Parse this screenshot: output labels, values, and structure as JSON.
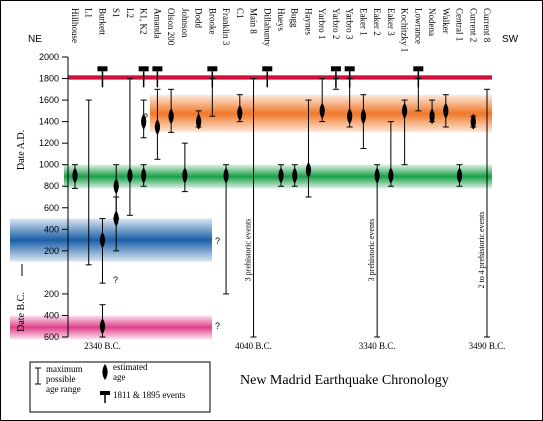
{
  "chart_data": {
    "type": "chronology",
    "title": "New Madrid Earthquake Chronology",
    "ylabel_top": "Date A.D.",
    "ylabel_bottom": "Date B.C.",
    "left_label": "NE",
    "right_label": "SW",
    "ylim": [
      -600,
      2000
    ],
    "yticks": [
      2000,
      1800,
      1600,
      1400,
      1200,
      1000,
      800,
      600,
      400,
      200,
      {
        "value": -200,
        "label": "200"
      },
      {
        "value": -400,
        "label": "400"
      },
      {
        "value": -600,
        "label": "600"
      }
    ],
    "bands": [
      {
        "from": 1790,
        "to": 1830,
        "color": "#d0103a"
      },
      {
        "from": 1300,
        "to": 1650,
        "color": "#f07828"
      },
      {
        "from": 780,
        "to": 1000,
        "color": "#1aa04a"
      },
      {
        "from": 100,
        "to": 500,
        "color": "#1a5fa8"
      },
      {
        "from": -620,
        "to": -400,
        "color": "#e0408a"
      }
    ],
    "question_marks": [
      "?",
      "?",
      "?",
      "?"
    ],
    "sites": [
      {
        "name": "Hillhouse",
        "events": [
          {
            "age": 900,
            "range": [
              780,
              1000
            ]
          }
        ]
      },
      {
        "name": "L1",
        "events": [
          {
            "age": null,
            "range": [
              70,
              1600
            ]
          }
        ]
      },
      {
        "name": "Burkett",
        "historic": true,
        "events": [
          {
            "age": 300,
            "range": [
              -100,
              500
            ]
          },
          {
            "age": -500,
            "range": [
              -600,
              -300
            ]
          }
        ],
        "below": "2340 B.C."
      },
      {
        "name": "S1",
        "events": [
          {
            "age": 800,
            "range": [
              500,
              1000
            ]
          },
          {
            "age": 500,
            "range": [
              200,
              700
            ]
          }
        ]
      },
      {
        "name": "L2",
        "events": [
          {
            "age": 900,
            "range": [
              530,
              1800
            ]
          }
        ]
      },
      {
        "name": "K1, K2",
        "historic": true,
        "events": [
          {
            "age": 1400,
            "range": [
              1250,
              1600
            ]
          },
          {
            "age": 900,
            "range": [
              800,
              1000
            ]
          }
        ]
      },
      {
        "name": "Amanda",
        "historic": true,
        "events": [
          {
            "age": 1350,
            "range": [
              1050,
              1700
            ]
          }
        ]
      },
      {
        "name": "Olson 200",
        "events": [
          {
            "age": 1450,
            "range": [
              1300,
              1700
            ]
          }
        ]
      },
      {
        "name": "Johnson",
        "events": [
          {
            "age": 900,
            "range": [
              750,
              1200
            ]
          }
        ]
      },
      {
        "name": "Dodd",
        "events": [
          {
            "age": 1400,
            "range": [
              1350,
              1500
            ]
          }
        ]
      },
      {
        "name": "Brooke",
        "historic": true,
        "events": [
          {
            "age": null,
            "range": [
              1450,
              1800
            ]
          }
        ]
      },
      {
        "name": "Franklin 3",
        "events": [
          {
            "age": 900,
            "range": [
              -200,
              1000
            ]
          }
        ]
      },
      {
        "name": "C1",
        "events": [
          {
            "age": 1480,
            "range": [
              1400,
              1650
            ]
          }
        ]
      },
      {
        "name": "Main 8",
        "events": [
          {
            "age": null,
            "range": [
              -600,
              1800
            ]
          }
        ],
        "note": "3 prehistoric events",
        "below": "4040 B.C."
      },
      {
        "name": "Dillahunty",
        "historic": true,
        "events": []
      },
      {
        "name": "Hueys",
        "events": [
          {
            "age": 900,
            "range": [
              800,
              1000
            ]
          }
        ]
      },
      {
        "name": "Bugg",
        "events": [
          {
            "age": 900,
            "range": [
              800,
              1000
            ]
          }
        ]
      },
      {
        "name": "Haynes",
        "events": [
          {
            "age": 950,
            "range": [
              700,
              1600
            ]
          }
        ]
      },
      {
        "name": "Yarbro 1",
        "events": [
          {
            "age": 1500,
            "range": [
              1400,
              1800
            ]
          }
        ]
      },
      {
        "name": "Yarbro 2",
        "historic": true,
        "events": [
          {
            "age": null,
            "range": [
              1700,
              1800
            ]
          }
        ]
      },
      {
        "name": "Yarbro 3",
        "historic": true,
        "events": [
          {
            "age": 1450,
            "range": [
              1350,
              1800
            ]
          }
        ]
      },
      {
        "name": "Eaker 1",
        "events": [
          {
            "age": 1450,
            "range": [
              1150,
              1650
            ]
          }
        ]
      },
      {
        "name": "Eaker 2",
        "events": [
          {
            "age": 900,
            "range": [
              -600,
              1000
            ]
          }
        ],
        "note": "3 prehistoric events",
        "below": "3340 B.C."
      },
      {
        "name": "Eaker 3",
        "events": [
          {
            "age": 900,
            "range": [
              800,
              1400
            ]
          }
        ]
      },
      {
        "name": "Kochitzky 1",
        "events": [
          {
            "age": 1500,
            "range": [
              1000,
              1600
            ]
          }
        ]
      },
      {
        "name": "Lowrance",
        "historic": true,
        "events": [
          {
            "age": null,
            "range": [
              1500,
              1800
            ]
          }
        ]
      },
      {
        "name": "Nodena",
        "events": [
          {
            "age": 1450,
            "range": [
              1400,
              1600
            ]
          }
        ]
      },
      {
        "name": "Walker",
        "events": [
          {
            "age": 1500,
            "range": [
              1350,
              1650
            ]
          }
        ]
      },
      {
        "name": "Central 1",
        "events": [
          {
            "age": 900,
            "range": [
              800,
              1000
            ]
          }
        ]
      },
      {
        "name": "Current 2",
        "events": [
          {
            "age": 1400,
            "range": [
              1350,
              1450
            ]
          }
        ]
      },
      {
        "name": "Current 8",
        "events": [
          {
            "age": null,
            "range": [
              -600,
              1700
            ]
          }
        ],
        "note": "2 to 4 prehistoric events",
        "below": "3490 B.C."
      }
    ],
    "legend": {
      "range": [
        "maximum",
        "possible",
        "age range"
      ],
      "age": [
        "estimated",
        "age"
      ],
      "historic": "1811 & 1895 events"
    }
  }
}
